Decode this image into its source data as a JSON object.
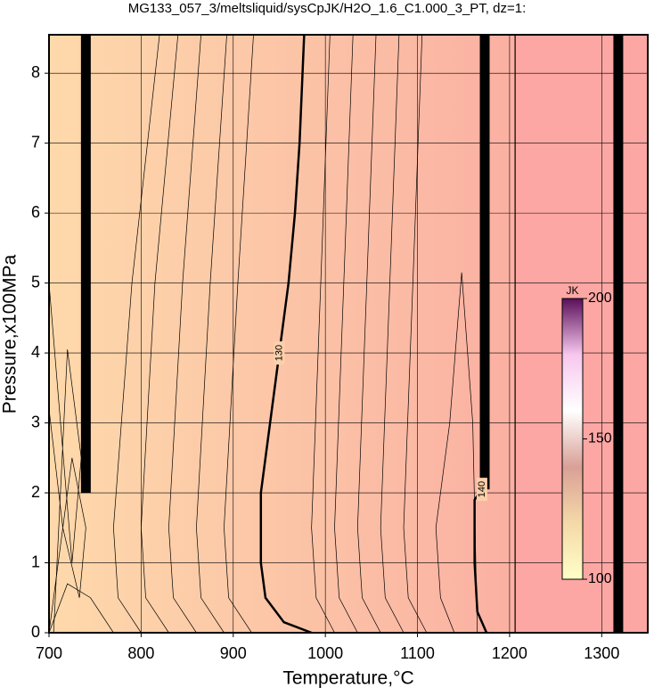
{
  "chart_data": {
    "type": "contour",
    "title": "MG133_057_3/meltsliquid/sysCpJK/H2O_1.6_C1.000_3_PT, dz=1:",
    "x_label": "Temperature,°C",
    "y_label": "Pressure,x100MPa",
    "xlim": [
      700,
      1350
    ],
    "xticks": [
      700,
      800,
      900,
      1000,
      1100,
      1200,
      1300
    ],
    "ylim": [
      0,
      8.55
    ],
    "yticks": [
      0,
      1,
      2,
      3,
      4,
      5,
      6,
      7,
      8
    ],
    "grid": true,
    "contours": [
      {
        "label": 130,
        "bold": true,
        "x": [
          985,
          955,
          935,
          930,
          930,
          940,
          950,
          960,
          967,
          972,
          977
        ],
        "y": [
          0,
          0.15,
          0.5,
          1,
          2,
          3,
          4,
          5,
          6,
          7,
          8.55
        ]
      },
      {
        "label": 140,
        "bold": true,
        "x": [
          1175,
          1165,
          1162,
          1162,
          1170,
          1173,
          1173
        ],
        "y": [
          0,
          0.3,
          1,
          1.9,
          2.05,
          2.5,
          8.55
        ]
      },
      {
        "bold": false,
        "x": [
          800,
          775,
          770,
          790,
          820
        ],
        "y": [
          0,
          0.5,
          1.5,
          5,
          8.55
        ]
      },
      {
        "bold": false,
        "x": [
          830,
          805,
          800,
          815,
          840
        ],
        "y": [
          0,
          0.5,
          1.5,
          5,
          8.55
        ]
      },
      {
        "bold": false,
        "x": [
          860,
          835,
          830,
          845,
          865
        ],
        "y": [
          0,
          0.5,
          1.5,
          5,
          8.55
        ]
      },
      {
        "bold": false,
        "x": [
          890,
          865,
          860,
          875,
          893
        ],
        "y": [
          0,
          0.5,
          1.5,
          5,
          8.55
        ]
      },
      {
        "bold": false,
        "x": [
          920,
          895,
          890,
          905,
          922
        ],
        "y": [
          0,
          0.5,
          1.5,
          5,
          8.55
        ]
      },
      {
        "bold": false,
        "x": [
          1010,
          990,
          985,
          995,
          1005
        ],
        "y": [
          0,
          0.5,
          1.5,
          5,
          8.55
        ]
      },
      {
        "bold": false,
        "x": [
          1035,
          1015,
          1010,
          1020,
          1030
        ],
        "y": [
          0,
          0.5,
          1.5,
          5,
          8.55
        ]
      },
      {
        "bold": false,
        "x": [
          1060,
          1040,
          1035,
          1045,
          1055
        ],
        "y": [
          0,
          0.5,
          1.5,
          5,
          8.55
        ]
      },
      {
        "bold": false,
        "x": [
          1085,
          1065,
          1060,
          1070,
          1080
        ],
        "y": [
          0,
          0.5,
          1.5,
          5,
          8.55
        ]
      },
      {
        "bold": false,
        "x": [
          1110,
          1090,
          1085,
          1095,
          1105
        ],
        "y": [
          0,
          0.5,
          1.5,
          5,
          8.55
        ]
      },
      {
        "bold": false,
        "x": [
          1140,
          1125,
          1120,
          1135,
          1148,
          1160,
          1165
        ],
        "y": [
          0,
          0.5,
          1.5,
          3,
          5.15,
          3,
          0
        ]
      },
      {
        "bold": false,
        "x": [
          700,
          720,
          745,
          770
        ],
        "y": [
          0,
          0.7,
          0.5,
          0
        ]
      },
      {
        "bold": false,
        "x": [
          700,
          725,
          740,
          733,
          715,
          700
        ],
        "y": [
          0,
          2.5,
          1.5,
          0.5,
          1.5,
          3.2
        ]
      },
      {
        "bold": false,
        "x": [
          705,
          720,
          735,
          725,
          700
        ],
        "y": [
          0,
          4.05,
          2.5,
          1,
          5
        ]
      }
    ],
    "bands": [
      {
        "x": [
          740,
          740
        ],
        "y": [
          2,
          8.55
        ]
      },
      {
        "x": [
          1173,
          1173
        ],
        "y": [
          2.05,
          8.55
        ]
      },
      {
        "x": [
          1318,
          1318
        ],
        "y": [
          0,
          8.55
        ]
      },
      {
        "x": [
          1206,
          1206
        ],
        "y": [
          0,
          8.55
        ]
      }
    ],
    "colorbar": {
      "label": "JK",
      "lim": [
        100,
        200
      ],
      "ticks": [
        100,
        150,
        200
      ],
      "colors": [
        "#ffffc8",
        "#f4d9a8",
        "#d9a096",
        "#ffffff",
        "#f7c7ee",
        "#5a0f5a"
      ]
    }
  }
}
